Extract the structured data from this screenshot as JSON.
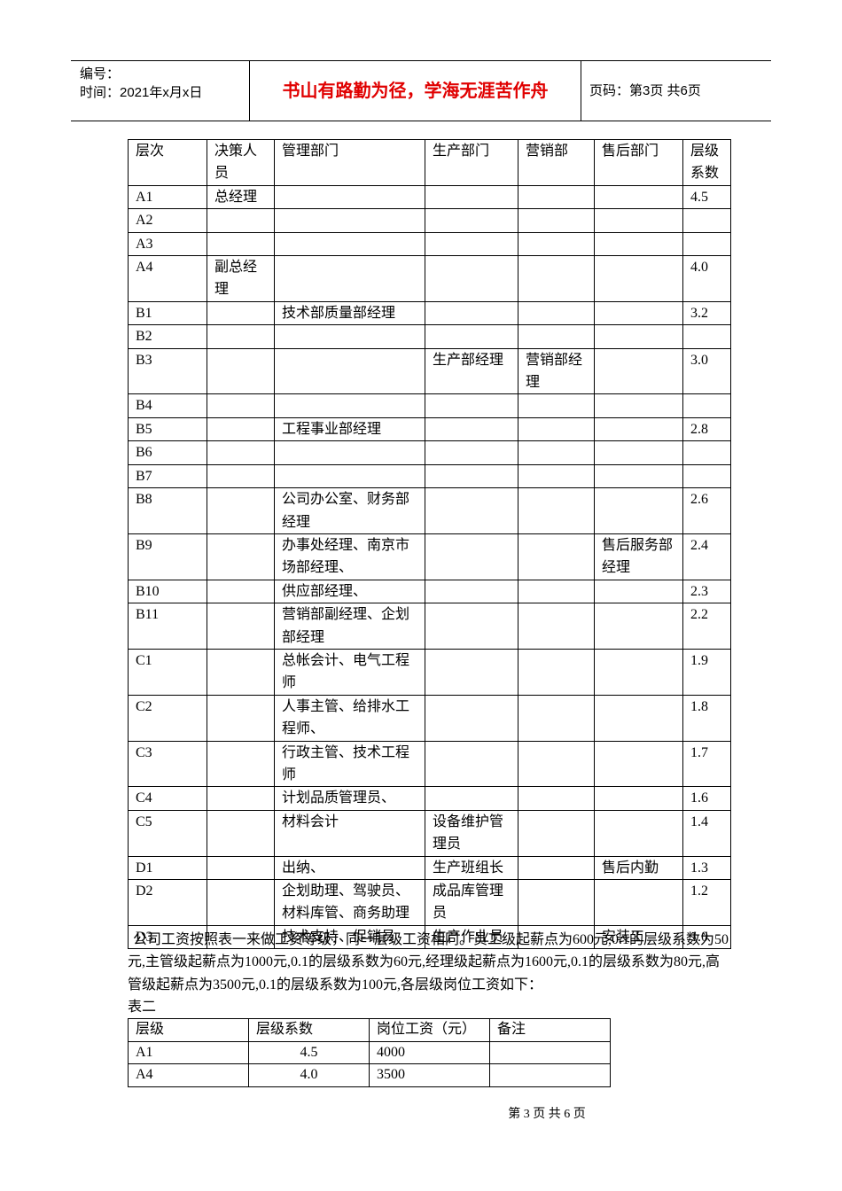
{
  "header": {
    "number_label": "编号：",
    "time_label": "时间：2021年x月x日",
    "motto": "书山有路勤为径，学海无涯苦作舟",
    "page_label": "页码：第3页 共6页"
  },
  "table1": {
    "columns": [
      "层次",
      "决策人员",
      "管理部门",
      "生产部门",
      "营销部",
      "售后部门",
      "层级系数"
    ],
    "rows": [
      [
        "A1",
        "总经理",
        null,
        null,
        null,
        null,
        "4.5"
      ],
      [
        "A2",
        null,
        null,
        null,
        null,
        null,
        null
      ],
      [
        "A3",
        null,
        null,
        null,
        null,
        null,
        null
      ],
      [
        "A4",
        "副总经理",
        null,
        null,
        null,
        null,
        "4.0"
      ],
      [
        "B1",
        null,
        "技术部质量部经理",
        null,
        null,
        null,
        "3.2"
      ],
      [
        "B2",
        null,
        null,
        null,
        null,
        null,
        null
      ],
      [
        "B3",
        null,
        null,
        "生产部经理",
        "营销部经理",
        null,
        "3.0"
      ],
      [
        "B4",
        null,
        null,
        null,
        null,
        null,
        null
      ],
      [
        "B5",
        null,
        "工程事业部经理",
        null,
        null,
        null,
        "2.8"
      ],
      [
        "B6",
        null,
        null,
        null,
        null,
        null,
        null
      ],
      [
        "B7",
        null,
        null,
        null,
        null,
        null,
        null
      ],
      [
        "B8",
        null,
        "公司办公室、财务部经理",
        null,
        null,
        null,
        "2.6"
      ],
      [
        "B9",
        null,
        "办事处经理、南京市场部经理、",
        null,
        null,
        "售后服务部经理",
        "2.4"
      ],
      [
        "B10",
        null,
        "供应部经理、",
        null,
        null,
        null,
        "2.3"
      ],
      [
        "B11",
        null,
        "营销部副经理、企划部经理",
        null,
        null,
        null,
        "2.2"
      ],
      [
        "C1",
        null,
        "总帐会计、电气工程师",
        null,
        null,
        null,
        "1.9"
      ],
      [
        "C2",
        null,
        "人事主管、给排水工程师、",
        null,
        null,
        null,
        "1.8"
      ],
      [
        "C3",
        null,
        "行政主管、技术工程师",
        null,
        null,
        null,
        "1.7"
      ],
      [
        "C4",
        null,
        "计划品质管理员、",
        null,
        null,
        null,
        "1.6"
      ],
      [
        "C5",
        null,
        "材料会计",
        "设备维护管理员",
        null,
        null,
        "1.4"
      ],
      [
        "D1",
        null,
        "出纳、",
        "生产班组长",
        null,
        "售后内勤",
        "1.3"
      ],
      [
        "D2",
        null,
        "企划助理、驾驶员、材料库管、商务助理",
        "成品库管理员",
        null,
        null,
        "1.2"
      ],
      [
        "D3",
        null,
        "技术支持、促销员",
        "生产作业员",
        null,
        "安装工",
        "1.0"
      ]
    ]
  },
  "paragraph": "公司工资按照表一来做工资等级，同一层级工资相同。员工级起薪点为600元,0.1的层级系数为50元,主管级起薪点为1000元,0.1的层级系数为60元,经理级起薪点为1600元,0.1的层级系数为80元,高管级起薪点为3500元,0.1的层级系数为100元,各层级岗位工资如下：",
  "table2_caption": "表二",
  "table2": {
    "columns": [
      "层级",
      "层级系数",
      "岗位工资（元）",
      "备注"
    ],
    "rows": [
      [
        "A1",
        "4.5",
        "4000",
        null
      ],
      [
        "A4",
        "4.0",
        "3500",
        null
      ]
    ]
  },
  "footer": "第 3 页 共 6 页"
}
